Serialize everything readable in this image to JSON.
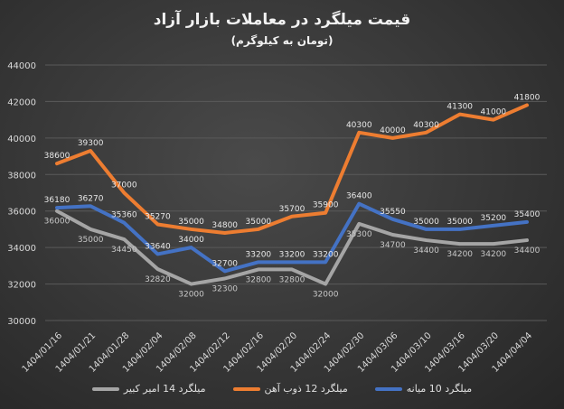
{
  "chart_data": {
    "type": "line",
    "title": "قیمت میلگرد در معاملات بازار آزاد",
    "subtitle": "(تومان به کیلوگرم)",
    "xlabel": "",
    "ylabel": "",
    "ylim": [
      30000,
      44000
    ],
    "yticks": [
      30000,
      32000,
      34000,
      36000,
      38000,
      40000,
      42000,
      44000
    ],
    "grid": true,
    "legend_position": "bottom",
    "categories": [
      "1404/01/16",
      "1404/01/21",
      "1404/01/28",
      "1404/02/04",
      "1404/02/08",
      "1404/02/12",
      "1404/02/16",
      "1404/02/20",
      "1404/02/24",
      "1404/02/30",
      "1404/03/06",
      "1404/03/10",
      "1404/03/16",
      "1404/03/20",
      "1404/04/04"
    ],
    "series": [
      {
        "name": "میلگرد 10 میانه",
        "color": "#4472c4",
        "values": [
          36180,
          36270,
          35360,
          33640,
          34000,
          32700,
          33200,
          33200,
          33200,
          36400,
          35550,
          35000,
          35000,
          35200,
          35400
        ]
      },
      {
        "name": "میلگرد 12 ذوب آهن",
        "color": "#ed7d31",
        "values": [
          38600,
          39300,
          37000,
          35270,
          35000,
          34800,
          35000,
          35700,
          35900,
          40300,
          40000,
          40300,
          41300,
          41000,
          41800
        ]
      },
      {
        "name": "میلگرد 14 امیر کبیر",
        "color": "#a5a5a5",
        "values": [
          36000,
          35000,
          34450,
          32820,
          32000,
          32300,
          32800,
          32800,
          32000,
          35300,
          34700,
          34400,
          34200,
          34200,
          34400
        ]
      }
    ]
  }
}
